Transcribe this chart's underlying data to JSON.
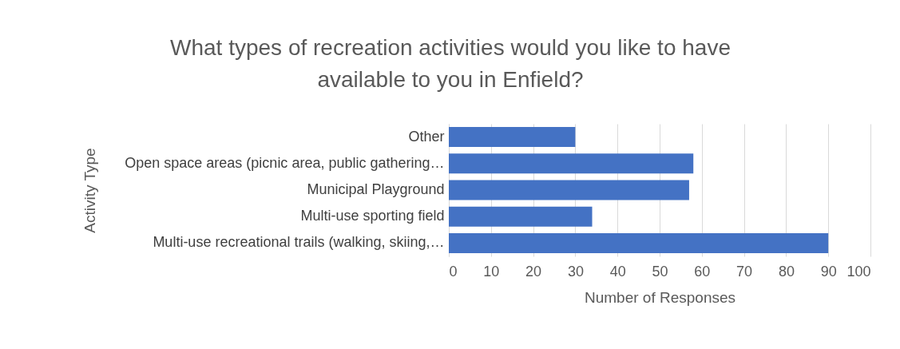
{
  "chart_data": {
    "type": "bar",
    "orientation": "horizontal",
    "title": "What types of recreation activities would you like to have available to you in Enfield?",
    "xlabel": "Number of Responses",
    "ylabel": "Activity Type",
    "categories": [
      "Other",
      "Open space areas (picnic area, public gathering…",
      "Municipal Playground",
      "Multi-use sporting field",
      "Multi-use recreational trails (walking, skiing,…"
    ],
    "values": [
      30,
      58,
      57,
      34,
      90
    ],
    "color": "#4472c4",
    "xlim": [
      0,
      100
    ],
    "xticks": [
      0,
      10,
      20,
      30,
      40,
      50,
      60,
      70,
      80,
      90,
      100
    ],
    "grid": "x"
  }
}
